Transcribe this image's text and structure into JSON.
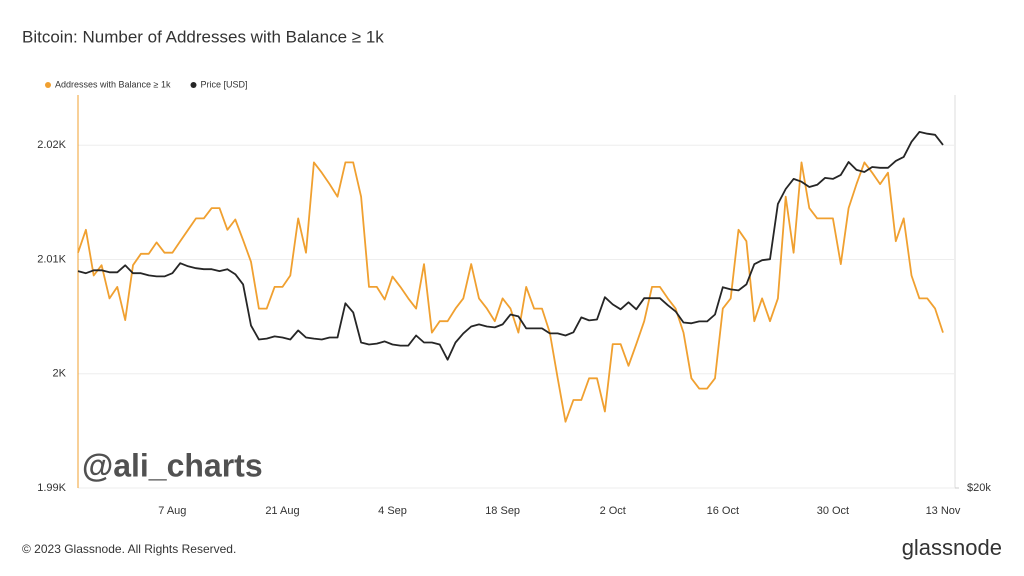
{
  "chart_data": {
    "type": "line",
    "title": "Bitcoin: Number of Addresses with Balance ≥ 1k",
    "legend": "top-left",
    "categories": [
      null,
      null,
      null,
      null,
      null,
      null,
      null,
      null,
      null,
      null,
      null,
      null,
      "7 Aug",
      null,
      null,
      null,
      null,
      null,
      null,
      null,
      null,
      null,
      null,
      null,
      null,
      null,
      "21 Aug",
      null,
      null,
      null,
      null,
      null,
      null,
      null,
      null,
      null,
      null,
      null,
      null,
      null,
      "4 Sep",
      null,
      null,
      null,
      null,
      null,
      null,
      null,
      null,
      null,
      null,
      null,
      null,
      null,
      "18 Sep",
      null,
      null,
      null,
      null,
      null,
      null,
      null,
      null,
      null,
      null,
      null,
      null,
      null,
      "2 Oct",
      null,
      null,
      null,
      null,
      null,
      null,
      null,
      null,
      null,
      null,
      null,
      null,
      null,
      "16 Oct",
      null,
      null,
      null,
      null,
      null,
      null,
      null,
      null,
      null,
      null,
      null,
      null,
      null,
      "30 Oct",
      null,
      null,
      null,
      null,
      null,
      null,
      null,
      null,
      null,
      null,
      null,
      null,
      null,
      "13 Nov"
    ],
    "series": [
      {
        "name": "Addresses with Balance ≥ 1k",
        "color": "#f0a030",
        "values": [
          2010.6,
          2012.6,
          2008.6,
          2009.5,
          2006.6,
          2007.6,
          2004.7,
          2009.5,
          2010.5,
          2010.5,
          2011.5,
          2010.6,
          2010.6,
          2011.6,
          2012.6,
          2013.6,
          2013.6,
          2014.5,
          2014.5,
          2012.6,
          2013.5,
          2011.7,
          2009.8,
          2005.7,
          2005.7,
          2007.6,
          2007.6,
          2008.6,
          2013.6,
          2010.6,
          2018.5,
          2017.6,
          2016.6,
          2015.5,
          2018.5,
          2018.5,
          2015.5,
          2007.6,
          2007.6,
          2006.5,
          2008.5,
          2007.6,
          2006.6,
          2005.7,
          2009.6,
          2003.6,
          2004.6,
          2004.6,
          2005.7,
          2006.6,
          2009.6,
          2006.6,
          2005.7,
          2004.6,
          2006.6,
          2005.7,
          2003.6,
          2007.6,
          2005.7,
          2005.7,
          2003.6,
          1999.6,
          1995.8,
          1997.7,
          1997.7,
          1999.6,
          1999.6,
          1996.7,
          2002.6,
          2002.6,
          2000.7,
          2002.6,
          2004.6,
          2007.6,
          2007.6,
          2006.6,
          2005.7,
          2003.6,
          1999.6,
          1998.7,
          1998.7,
          1999.6,
          2005.7,
          2006.6,
          2012.6,
          2011.6,
          2004.6,
          2006.6,
          2004.6,
          2006.6,
          2015.5,
          2010.6,
          2018.5,
          2014.5,
          2013.6,
          2013.6,
          2013.6,
          2009.6,
          2014.5,
          2016.6,
          2018.5,
          2017.6,
          2016.6,
          2017.6,
          2011.6,
          2013.6,
          2008.6,
          2006.6,
          2006.6,
          2005.7,
          2003.6
        ]
      },
      {
        "name": "Price [USD]",
        "color": "#262626",
        "axis": "y2",
        "values": [
          29320,
          29210,
          29360,
          29360,
          29260,
          29260,
          29620,
          29210,
          29210,
          29100,
          29050,
          29050,
          29210,
          29730,
          29570,
          29470,
          29420,
          29420,
          29320,
          29420,
          29160,
          28640,
          26640,
          25990,
          26030,
          26130,
          26080,
          25990,
          26410,
          26080,
          26030,
          25990,
          26080,
          26080,
          27700,
          27260,
          25850,
          25760,
          25800,
          25900,
          25760,
          25710,
          25710,
          26170,
          25850,
          25850,
          25760,
          25080,
          25850,
          26270,
          26590,
          26690,
          26590,
          26550,
          26690,
          27160,
          27070,
          26500,
          26500,
          26500,
          26270,
          26270,
          26170,
          26320,
          27020,
          26880,
          26920,
          28000,
          27650,
          27410,
          27750,
          27410,
          27950,
          27950,
          27950,
          27610,
          27310,
          26780,
          26740,
          26830,
          26830,
          27160,
          28500,
          28390,
          28340,
          28640,
          29680,
          29890,
          29940,
          33010,
          33890,
          34500,
          34330,
          34010,
          34140,
          34560,
          34500,
          34740,
          35540,
          35050,
          34920,
          35230,
          35180,
          35180,
          35610,
          35860,
          36830,
          37480,
          37360,
          37290,
          36630
        ]
      }
    ],
    "ylim": [
      1990,
      2024.4
    ],
    "yticks": [
      {
        "value": 1990,
        "label": "1.99K"
      },
      {
        "value": 2000,
        "label": "2K"
      },
      {
        "value": 2010,
        "label": "2.01K"
      },
      {
        "value": 2020,
        "label": "2.02K"
      }
    ],
    "y2lim": [
      20000,
      40000
    ],
    "y2log": true,
    "y2ticks": [
      {
        "value": 20000,
        "label": "$20k"
      }
    ],
    "grid": true,
    "annotations": [
      "@ali_charts"
    ],
    "footer": "© 2023 Glassnode. All Rights Reserved.",
    "logo": "glassnode"
  }
}
